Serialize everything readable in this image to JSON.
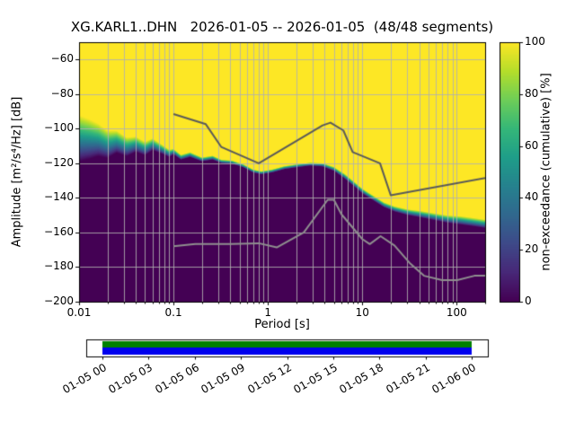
{
  "chart_data": {
    "type": "heatmap",
    "title": "XG.KARL1..DHN   2026-01-05 -- 2026-01-05  (48/48 segments)",
    "xlabel": "Period [s]",
    "ylabel": "Amplitude [m²/s⁴/Hz] [dB]",
    "xscale": "log",
    "xlim": [
      0.01,
      200
    ],
    "ylim": [
      -200,
      -50
    ],
    "xticks": [
      0.01,
      0.1,
      1,
      10,
      100
    ],
    "xtick_labels": [
      "0.01",
      "0.1",
      "1",
      "10",
      "100"
    ],
    "yticks": [
      -60,
      -80,
      -100,
      -120,
      -140,
      -160,
      -180,
      -200
    ],
    "grid": true,
    "colorbar": {
      "label": "non-exceedance (cumulative) [%]",
      "ticks": [
        0,
        20,
        40,
        60,
        80,
        100
      ],
      "lim": [
        0,
        100
      ],
      "colormap": "viridis"
    },
    "cumulative_boundary": [
      [
        0.01,
        -119,
        27
      ],
      [
        0.013,
        -117.5,
        23
      ],
      [
        0.016,
        -116,
        19
      ],
      [
        0.02,
        -117,
        16
      ],
      [
        0.025,
        -114,
        13
      ],
      [
        0.032,
        -116,
        11
      ],
      [
        0.04,
        -113.5,
        9
      ],
      [
        0.05,
        -115.5,
        8
      ],
      [
        0.06,
        -112.5,
        7
      ],
      [
        0.075,
        -114.5,
        5.5
      ],
      [
        0.09,
        -116.5,
        4.5
      ],
      [
        0.1,
        -115,
        3.5
      ],
      [
        0.12,
        -118,
        3
      ],
      [
        0.15,
        -116.5,
        3
      ],
      [
        0.2,
        -119,
        2.5
      ],
      [
        0.26,
        -118,
        2.5
      ],
      [
        0.32,
        -120,
        2.2
      ],
      [
        0.42,
        -120.5,
        2.2
      ],
      [
        0.55,
        -122.5,
        2
      ],
      [
        0.7,
        -125.5,
        2
      ],
      [
        0.85,
        -126.5,
        2
      ],
      [
        1.1,
        -125.5,
        2
      ],
      [
        1.5,
        -123.5,
        2
      ],
      [
        2,
        -122.5,
        2
      ],
      [
        2.8,
        -121.5,
        2
      ],
      [
        3.8,
        -122,
        2.2
      ],
      [
        5,
        -124.5,
        2.5
      ],
      [
        6.5,
        -129,
        3
      ],
      [
        8,
        -133,
        3
      ],
      [
        10,
        -137.5,
        3
      ],
      [
        13,
        -141.5,
        3
      ],
      [
        17,
        -145.5,
        3
      ],
      [
        22,
        -148,
        3.2
      ],
      [
        30,
        -150,
        3.5
      ],
      [
        42,
        -151.5,
        4
      ],
      [
        58,
        -153,
        4.2
      ],
      [
        80,
        -154.5,
        4.5
      ],
      [
        110,
        -155.5,
        5
      ],
      [
        150,
        -156.5,
        5
      ],
      [
        200,
        -157.5,
        5
      ]
    ],
    "noise_models": {
      "nhnm": [
        [
          0.1,
          -91.5
        ],
        [
          0.22,
          -97.4
        ],
        [
          0.32,
          -110.5
        ],
        [
          0.8,
          -120
        ],
        [
          3.8,
          -98.1
        ],
        [
          4.6,
          -96.5
        ],
        [
          6.3,
          -101
        ],
        [
          7.9,
          -113.5
        ],
        [
          15.4,
          -120
        ],
        [
          20,
          -138.5
        ],
        [
          354.8,
          -126
        ]
      ],
      "nlnm": [
        [
          0.1,
          -168
        ],
        [
          0.17,
          -166.7
        ],
        [
          0.4,
          -166.7
        ],
        [
          0.8,
          -166.2
        ],
        [
          1.24,
          -168.6
        ],
        [
          2.4,
          -160
        ],
        [
          4.3,
          -141.1
        ],
        [
          5,
          -141.1
        ],
        [
          6,
          -149.4
        ],
        [
          10,
          -163.8
        ],
        [
          12,
          -166.7
        ],
        [
          15.6,
          -162.1
        ],
        [
          21.9,
          -167.5
        ],
        [
          31.6,
          -177.5
        ],
        [
          45,
          -185
        ],
        [
          70,
          -187.5
        ],
        [
          101,
          -187.5
        ],
        [
          154,
          -185
        ],
        [
          328,
          -185
        ]
      ]
    },
    "timeline": {
      "labels": [
        "01-05 00",
        "01-05 03",
        "01-05 06",
        "01-05 09",
        "01-05 12",
        "01-05 15",
        "01-05 18",
        "01-05 21",
        "01-06 00"
      ],
      "colors": [
        "#008000",
        "#0000ee"
      ]
    },
    "colors": {
      "grid": "#b0b0b0",
      "nhnm": "#5a5a5a",
      "nlnm": "#8f8f8f",
      "viridis": [
        "#440154",
        "#482878",
        "#3e4a89",
        "#31688e",
        "#26828e",
        "#1f9e89",
        "#35b779",
        "#6ece58",
        "#b5de2b",
        "#fde725"
      ]
    }
  }
}
